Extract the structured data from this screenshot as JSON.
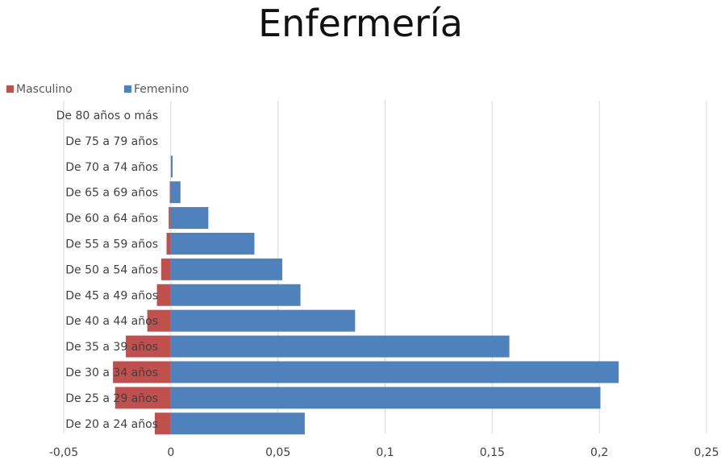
{
  "header": {
    "title": "Enfermería"
  },
  "legend": {
    "masculino": {
      "label": "Masculino",
      "color": "#c0504d"
    },
    "femenino": {
      "label": "Femenino",
      "color": "#4f81bd"
    }
  },
  "chart_data": {
    "type": "bar",
    "orientation": "horizontal",
    "stacked": true,
    "title": "Enfermería",
    "categories": [
      "De 80 años o más",
      "De 75 a 79 años",
      "De 70 a 74 años",
      "De 65 a 69 años",
      "De 60 a 64 años",
      "De 55 a 59 años",
      "De 50 a 54 años",
      "De 45 a 49 años",
      "De 40 a 44 años",
      "De 35 a 39 años",
      "De 30 a 34 años",
      "De 25 a 29 años",
      "De 20 a 24 años"
    ],
    "series": [
      {
        "name": "Masculino",
        "color": "#c0504d",
        "values": [
          0,
          0,
          0,
          -0.0005,
          -0.001,
          -0.002,
          -0.0045,
          -0.0065,
          -0.011,
          -0.021,
          -0.027,
          -0.026,
          -0.0075
        ]
      },
      {
        "name": "Femenino",
        "color": "#4f81bd",
        "values": [
          0,
          0,
          0.0008,
          0.0045,
          0.0175,
          0.039,
          0.052,
          0.0605,
          0.086,
          0.158,
          0.209,
          0.2005,
          0.0625
        ]
      }
    ],
    "xlim": [
      -0.05,
      0.25
    ],
    "xticks": [
      "-0,05",
      "0",
      "0,05",
      "0,1",
      "0,15",
      "0,2",
      "0,25"
    ],
    "xtick_values": [
      -0.05,
      0,
      0.05,
      0.1,
      0.15,
      0.2,
      0.25
    ],
    "grid": "vertical",
    "legend_position": "top-left"
  }
}
